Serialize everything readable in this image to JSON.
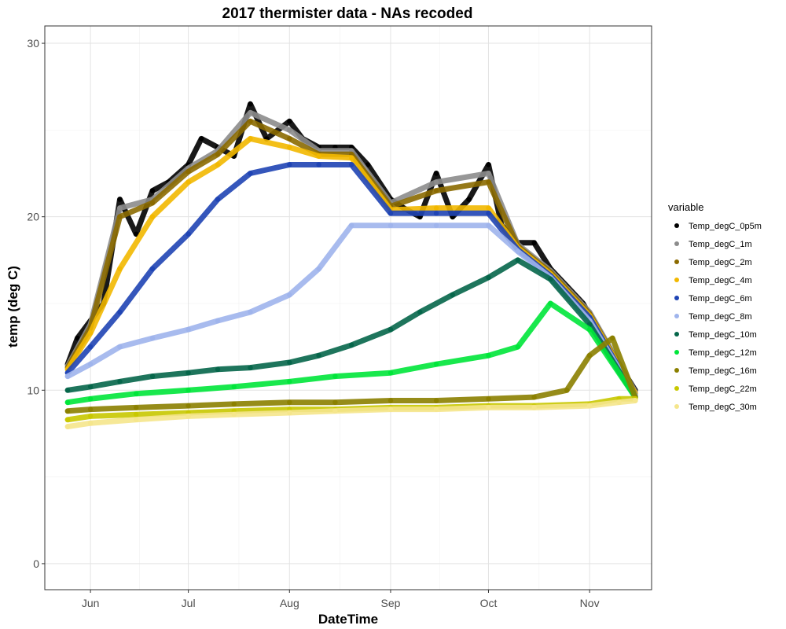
{
  "chart_data": {
    "type": "scatter",
    "title": "2017 thermister data - NAs recoded",
    "xlabel": "DateTime",
    "ylabel": "temp (deg C)",
    "xlim": [
      "2017-05-18",
      "2017-11-20"
    ],
    "ylim": [
      -1.5,
      31
    ],
    "x_ticks": [
      {
        "date": "2017-06-01",
        "label": "Jun"
      },
      {
        "date": "2017-07-01",
        "label": "Jul"
      },
      {
        "date": "2017-08-01",
        "label": "Aug"
      },
      {
        "date": "2017-09-01",
        "label": "Sep"
      },
      {
        "date": "2017-10-01",
        "label": "Oct"
      },
      {
        "date": "2017-11-01",
        "label": "Nov"
      }
    ],
    "y_ticks": [
      0,
      10,
      20,
      30
    ],
    "grid": true,
    "legend": {
      "title": "variable",
      "position": "right"
    },
    "series": [
      {
        "name": "Temp_degC_0p5m",
        "color": "#000000",
        "points": [
          [
            "2017-05-25",
            11.5
          ],
          [
            "2017-05-28",
            13
          ],
          [
            "2017-06-01",
            14
          ],
          [
            "2017-06-05",
            15
          ],
          [
            "2017-06-10",
            21
          ],
          [
            "2017-06-15",
            19
          ],
          [
            "2017-06-20",
            21.5
          ],
          [
            "2017-06-25",
            22
          ],
          [
            "2017-07-01",
            23
          ],
          [
            "2017-07-05",
            24.5
          ],
          [
            "2017-07-10",
            24
          ],
          [
            "2017-07-15",
            23.5
          ],
          [
            "2017-07-20",
            26.5
          ],
          [
            "2017-07-25",
            24.5
          ],
          [
            "2017-08-01",
            25.5
          ],
          [
            "2017-08-05",
            24.5
          ],
          [
            "2017-08-10",
            24
          ],
          [
            "2017-08-15",
            24
          ],
          [
            "2017-08-20",
            24
          ],
          [
            "2017-08-25",
            23
          ],
          [
            "2017-09-01",
            21
          ],
          [
            "2017-09-05",
            20.5
          ],
          [
            "2017-09-10",
            20
          ],
          [
            "2017-09-15",
            22.5
          ],
          [
            "2017-09-20",
            20
          ],
          [
            "2017-09-25",
            21
          ],
          [
            "2017-10-01",
            23
          ],
          [
            "2017-10-05",
            19.5
          ],
          [
            "2017-10-10",
            18.5
          ],
          [
            "2017-10-15",
            18.5
          ],
          [
            "2017-10-20",
            17
          ],
          [
            "2017-10-25",
            16
          ],
          [
            "2017-10-30",
            15
          ],
          [
            "2017-11-05",
            13
          ],
          [
            "2017-11-10",
            11.5
          ],
          [
            "2017-11-15",
            10
          ]
        ]
      },
      {
        "name": "Temp_degC_1m",
        "color": "#8c8c8c",
        "points": [
          [
            "2017-05-25",
            11.4
          ],
          [
            "2017-06-01",
            13.8
          ],
          [
            "2017-06-10",
            20.5
          ],
          [
            "2017-06-20",
            21
          ],
          [
            "2017-07-01",
            22.8
          ],
          [
            "2017-07-10",
            23.8
          ],
          [
            "2017-07-20",
            26
          ],
          [
            "2017-08-01",
            25
          ],
          [
            "2017-08-10",
            23.8
          ],
          [
            "2017-08-20",
            23.8
          ],
          [
            "2017-09-01",
            20.8
          ],
          [
            "2017-09-15",
            22
          ],
          [
            "2017-10-01",
            22.5
          ],
          [
            "2017-10-10",
            18.4
          ],
          [
            "2017-10-20",
            16.9
          ],
          [
            "2017-11-01",
            14.5
          ],
          [
            "2017-11-15",
            9.9
          ]
        ]
      },
      {
        "name": "Temp_degC_2m",
        "color": "#8b6a00",
        "points": [
          [
            "2017-05-25",
            11.3
          ],
          [
            "2017-06-01",
            13.6
          ],
          [
            "2017-06-10",
            20
          ],
          [
            "2017-06-20",
            20.8
          ],
          [
            "2017-07-01",
            22.6
          ],
          [
            "2017-07-10",
            23.6
          ],
          [
            "2017-07-20",
            25.5
          ],
          [
            "2017-08-01",
            24.5
          ],
          [
            "2017-08-10",
            23.6
          ],
          [
            "2017-08-20",
            23.6
          ],
          [
            "2017-09-01",
            20.6
          ],
          [
            "2017-09-15",
            21.5
          ],
          [
            "2017-10-01",
            22
          ],
          [
            "2017-10-10",
            18.3
          ],
          [
            "2017-10-20",
            16.8
          ],
          [
            "2017-11-01",
            14.4
          ],
          [
            "2017-11-15",
            9.8
          ]
        ]
      },
      {
        "name": "Temp_degC_4m",
        "color": "#f2b800",
        "points": [
          [
            "2017-05-25",
            11.2
          ],
          [
            "2017-06-01",
            13.3
          ],
          [
            "2017-06-10",
            17
          ],
          [
            "2017-06-20",
            20
          ],
          [
            "2017-07-01",
            22
          ],
          [
            "2017-07-10",
            23
          ],
          [
            "2017-07-20",
            24.5
          ],
          [
            "2017-08-01",
            24
          ],
          [
            "2017-08-10",
            23.5
          ],
          [
            "2017-08-20",
            23.4
          ],
          [
            "2017-09-01",
            20.4
          ],
          [
            "2017-09-15",
            20.5
          ],
          [
            "2017-10-01",
            20.5
          ],
          [
            "2017-10-10",
            18.2
          ],
          [
            "2017-10-20",
            16.7
          ],
          [
            "2017-11-01",
            14.3
          ],
          [
            "2017-11-15",
            9.8
          ]
        ]
      },
      {
        "name": "Temp_degC_6m",
        "color": "#1f44b4",
        "points": [
          [
            "2017-05-25",
            11
          ],
          [
            "2017-06-01",
            12.5
          ],
          [
            "2017-06-10",
            14.5
          ],
          [
            "2017-06-20",
            17
          ],
          [
            "2017-07-01",
            19
          ],
          [
            "2017-07-10",
            21
          ],
          [
            "2017-07-20",
            22.5
          ],
          [
            "2017-08-01",
            23
          ],
          [
            "2017-08-10",
            23
          ],
          [
            "2017-08-20",
            23
          ],
          [
            "2017-09-01",
            20.2
          ],
          [
            "2017-09-15",
            20.2
          ],
          [
            "2017-10-01",
            20.2
          ],
          [
            "2017-10-10",
            18.1
          ],
          [
            "2017-10-20",
            16.6
          ],
          [
            "2017-11-01",
            14.2
          ],
          [
            "2017-11-15",
            9.7
          ]
        ]
      },
      {
        "name": "Temp_degC_8m",
        "color": "#9fb4ec",
        "points": [
          [
            "2017-05-25",
            10.8
          ],
          [
            "2017-06-01",
            11.5
          ],
          [
            "2017-06-10",
            12.5
          ],
          [
            "2017-06-20",
            13
          ],
          [
            "2017-07-01",
            13.5
          ],
          [
            "2017-07-10",
            14
          ],
          [
            "2017-07-20",
            14.5
          ],
          [
            "2017-08-01",
            15.5
          ],
          [
            "2017-08-10",
            17
          ],
          [
            "2017-08-20",
            19.5
          ],
          [
            "2017-09-01",
            19.5
          ],
          [
            "2017-09-15",
            19.5
          ],
          [
            "2017-10-01",
            19.5
          ],
          [
            "2017-10-10",
            18
          ],
          [
            "2017-10-20",
            16.5
          ],
          [
            "2017-11-01",
            14
          ],
          [
            "2017-11-15",
            9.7
          ]
        ]
      },
      {
        "name": "Temp_degC_10m",
        "color": "#05664a",
        "points": [
          [
            "2017-05-25",
            10
          ],
          [
            "2017-06-01",
            10.2
          ],
          [
            "2017-06-10",
            10.5
          ],
          [
            "2017-06-20",
            10.8
          ],
          [
            "2017-07-01",
            11
          ],
          [
            "2017-07-10",
            11.2
          ],
          [
            "2017-07-20",
            11.3
          ],
          [
            "2017-08-01",
            11.6
          ],
          [
            "2017-08-10",
            12
          ],
          [
            "2017-08-20",
            12.6
          ],
          [
            "2017-09-01",
            13.5
          ],
          [
            "2017-09-10",
            14.5
          ],
          [
            "2017-09-20",
            15.5
          ],
          [
            "2017-10-01",
            16.5
          ],
          [
            "2017-10-10",
            17.5
          ],
          [
            "2017-10-20",
            16.4
          ],
          [
            "2017-11-01",
            13.8
          ],
          [
            "2017-11-15",
            9.6
          ]
        ]
      },
      {
        "name": "Temp_degC_12m",
        "color": "#00e63a",
        "points": [
          [
            "2017-05-25",
            9.3
          ],
          [
            "2017-06-01",
            9.5
          ],
          [
            "2017-06-15",
            9.8
          ],
          [
            "2017-07-01",
            10
          ],
          [
            "2017-07-15",
            10.2
          ],
          [
            "2017-08-01",
            10.5
          ],
          [
            "2017-08-15",
            10.8
          ],
          [
            "2017-09-01",
            11
          ],
          [
            "2017-09-15",
            11.5
          ],
          [
            "2017-10-01",
            12
          ],
          [
            "2017-10-10",
            12.5
          ],
          [
            "2017-10-20",
            15
          ],
          [
            "2017-11-01",
            13.5
          ],
          [
            "2017-11-15",
            9.6
          ]
        ]
      },
      {
        "name": "Temp_degC_16m",
        "color": "#8b8000",
        "points": [
          [
            "2017-05-25",
            8.8
          ],
          [
            "2017-06-01",
            8.9
          ],
          [
            "2017-06-15",
            9
          ],
          [
            "2017-07-01",
            9.1
          ],
          [
            "2017-07-15",
            9.2
          ],
          [
            "2017-08-01",
            9.3
          ],
          [
            "2017-08-15",
            9.3
          ],
          [
            "2017-09-01",
            9.4
          ],
          [
            "2017-09-15",
            9.4
          ],
          [
            "2017-10-01",
            9.5
          ],
          [
            "2017-10-15",
            9.6
          ],
          [
            "2017-10-25",
            10
          ],
          [
            "2017-11-01",
            12
          ],
          [
            "2017-11-08",
            13
          ],
          [
            "2017-11-15",
            9.6
          ]
        ]
      },
      {
        "name": "Temp_degC_22m",
        "color": "#c8c800",
        "points": [
          [
            "2017-05-25",
            8.3
          ],
          [
            "2017-06-01",
            8.5
          ],
          [
            "2017-06-15",
            8.6
          ],
          [
            "2017-07-01",
            8.7
          ],
          [
            "2017-07-15",
            8.8
          ],
          [
            "2017-08-01",
            8.9
          ],
          [
            "2017-08-15",
            8.9
          ],
          [
            "2017-09-01",
            9
          ],
          [
            "2017-09-15",
            9
          ],
          [
            "2017-10-01",
            9.1
          ],
          [
            "2017-10-15",
            9.1
          ],
          [
            "2017-11-01",
            9.2
          ],
          [
            "2017-11-10",
            9.5
          ],
          [
            "2017-11-15",
            9.5
          ]
        ]
      },
      {
        "name": "Temp_degC_30m",
        "color": "#f5e68c",
        "points": [
          [
            "2017-05-25",
            7.9
          ],
          [
            "2017-06-01",
            8.1
          ],
          [
            "2017-06-15",
            8.3
          ],
          [
            "2017-07-01",
            8.5
          ],
          [
            "2017-07-15",
            8.6
          ],
          [
            "2017-08-01",
            8.7
          ],
          [
            "2017-08-15",
            8.8
          ],
          [
            "2017-09-01",
            8.9
          ],
          [
            "2017-09-15",
            8.9
          ],
          [
            "2017-10-01",
            9
          ],
          [
            "2017-10-15",
            9
          ],
          [
            "2017-11-01",
            9.1
          ],
          [
            "2017-11-10",
            9.3
          ],
          [
            "2017-11-15",
            9.4
          ]
        ]
      }
    ]
  }
}
